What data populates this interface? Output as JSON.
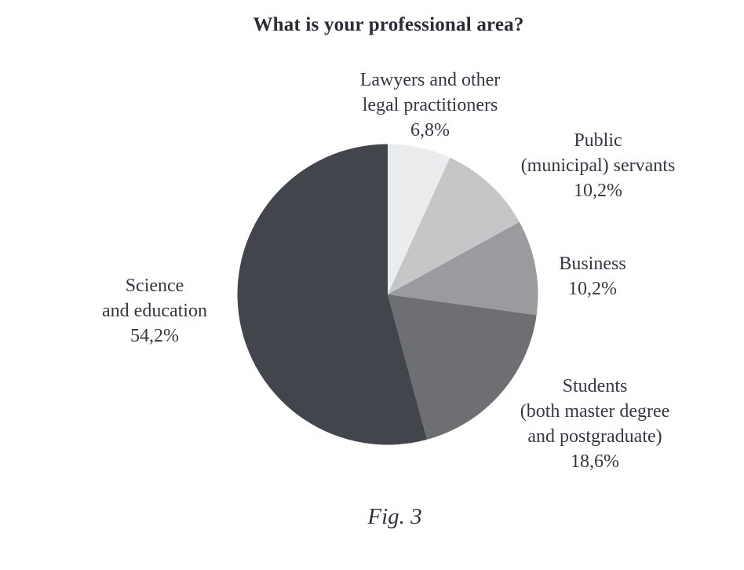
{
  "chart_data": {
    "type": "pie",
    "title": "What is your professional area?",
    "caption": "Fig. 3",
    "start_angle_deg": -90,
    "direction": "clockwise",
    "legend_position": "labels-around-pie",
    "slices": [
      {
        "label": "Lawyers and other\nlegal practitioners",
        "value_label": "6,8%",
        "value": 6.8,
        "color": "#ebeced"
      },
      {
        "label": "Public\n(municipal) servants",
        "value_label": "10,2%",
        "value": 10.2,
        "color": "#c5c6c8"
      },
      {
        "label": "Business",
        "value_label": "10,2%",
        "value": 10.2,
        "color": "#9a9b9e"
      },
      {
        "label": "Students\n(both master degree\nand postgraduate)",
        "value_label": "18,6%",
        "value": 18.6,
        "color": "#6e6f73"
      },
      {
        "label": "Science\nand education",
        "value_label": "54,2%",
        "value": 54.2,
        "color": "#42454c"
      }
    ]
  }
}
